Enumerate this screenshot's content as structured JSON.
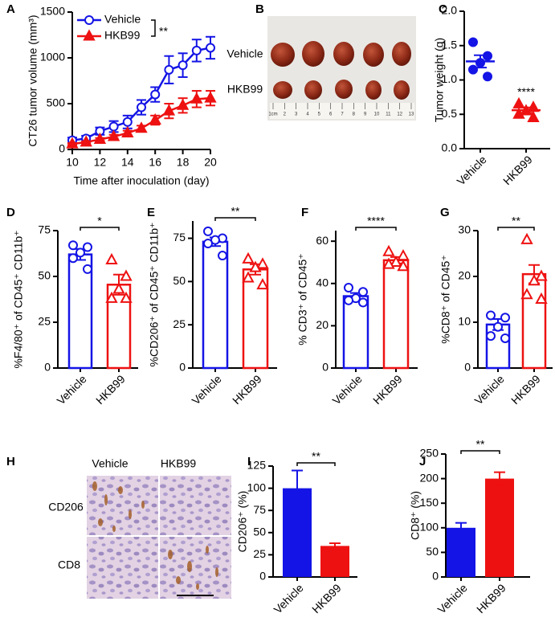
{
  "chart_data": [
    {
      "type": "line",
      "panel": "A",
      "ylabel": "CT26 tumor volume (mm³)",
      "xlabel": "Time after inoculation (day)",
      "x": [
        10,
        11,
        12,
        13,
        14,
        15,
        16,
        17,
        18,
        19,
        20
      ],
      "series": [
        {
          "name": "Vehicle",
          "color": "#1414e6",
          "marker": "circle",
          "filled": false,
          "values": [
            100,
            120,
            200,
            250,
            300,
            460,
            600,
            870,
            920,
            1080,
            1110
          ],
          "errors": [
            30,
            30,
            40,
            60,
            70,
            80,
            80,
            150,
            130,
            120,
            120
          ]
        },
        {
          "name": "HKB99",
          "color": "#ee1111",
          "marker": "triangle",
          "filled": true,
          "values": [
            60,
            80,
            110,
            140,
            180,
            230,
            320,
            420,
            480,
            550,
            560
          ],
          "errors": [
            10,
            10,
            15,
            20,
            25,
            30,
            50,
            80,
            80,
            90,
            80
          ]
        }
      ],
      "xlim": [
        10,
        20
      ],
      "xticks": [
        10,
        12,
        14,
        16,
        18,
        20
      ],
      "ylim": [
        0,
        1500
      ],
      "yticks": [
        0,
        500,
        1000,
        1500
      ],
      "significance": "**"
    },
    {
      "type": "dot",
      "panel": "C",
      "ylabel": "Tumor weight (g)",
      "categories": [
        "Vehicle",
        "HKB99"
      ],
      "colors": [
        "#1414e6",
        "#ee1111"
      ],
      "markers": [
        "circle",
        "triangle"
      ],
      "filled": true,
      "means": [
        1.27,
        0.56
      ],
      "sems": [
        0.09,
        0.04
      ],
      "points": [
        [
          1.55,
          1.35,
          1.25,
          1.15,
          1.05
        ],
        [
          0.65,
          0.6,
          0.55,
          0.5,
          0.45
        ]
      ],
      "ylim": [
        0,
        2
      ],
      "yticks": [
        {
          "value": 0,
          "label": "0.0"
        },
        {
          "value": 0.5,
          "label": "0.5"
        },
        {
          "value": 1,
          "label": "1.0"
        },
        {
          "value": 1.5,
          "label": "1.5"
        },
        {
          "value": 2,
          "label": "2.0"
        }
      ],
      "significance": "****"
    },
    {
      "type": "bar_dot",
      "panel": "D",
      "ylabel": "%F4/80⁺ of CD45⁺ CD11b⁺",
      "categories": [
        "Vehicle",
        "HKB99"
      ],
      "colors": [
        "#1414e6",
        "#ee1111"
      ],
      "markers": [
        "circle",
        "triangle"
      ],
      "filled": false,
      "means": [
        62,
        45.5
      ],
      "sems": [
        3,
        5.5
      ],
      "points": [
        [
          67,
          66,
          63,
          60,
          54
        ],
        [
          59,
          50,
          43,
          38,
          38
        ]
      ],
      "ylim": [
        0,
        75
      ],
      "yticks": [
        0,
        25,
        50,
        75
      ],
      "significance": "*"
    },
    {
      "type": "bar_dot",
      "panel": "E",
      "ylabel": "%CD206⁺ of CD45⁺ CD11b⁺",
      "categories": [
        "Vehicle",
        "HKB99"
      ],
      "colors": [
        "#1414e6",
        "#ee1111"
      ],
      "markers": [
        "circle",
        "triangle"
      ],
      "filled": false,
      "means": [
        73,
        57
      ],
      "sems": [
        2.5,
        3
      ],
      "points": [
        [
          79,
          75,
          74,
          72,
          65
        ],
        [
          63,
          60,
          58,
          52,
          48
        ]
      ],
      "ylim": [
        0,
        85
      ],
      "yticks": [
        0,
        25,
        50,
        75
      ],
      "significance": "**"
    },
    {
      "type": "bar_dot",
      "panel": "F",
      "ylabel": "% CD3⁺ of CD45⁺",
      "categories": [
        "Vehicle",
        "HKB99"
      ],
      "colors": [
        "#1414e6",
        "#ee1111"
      ],
      "markers": [
        "circle",
        "triangle"
      ],
      "filled": false,
      "means": [
        34,
        51
      ],
      "sems": [
        1.5,
        1.5
      ],
      "points": [
        [
          38,
          36,
          33,
          32,
          31
        ],
        [
          55,
          53,
          50,
          49,
          48
        ]
      ],
      "ylim": [
        0,
        65
      ],
      "yticks": [
        0,
        20,
        40,
        60
      ],
      "significance": "****"
    },
    {
      "type": "bar_dot",
      "panel": "G",
      "ylabel": "%CD8⁺ of CD45⁺",
      "categories": [
        "Vehicle",
        "HKB99"
      ],
      "colors": [
        "#1414e6",
        "#ee1111"
      ],
      "markers": [
        "circle",
        "triangle"
      ],
      "filled": false,
      "means": [
        9.5,
        20.5
      ],
      "sems": [
        1.2,
        2
      ],
      "points": [
        [
          11.5,
          11,
          9,
          7,
          6.5
        ],
        [
          28,
          20,
          19,
          16,
          15
        ]
      ],
      "ylim": [
        0,
        30
      ],
      "yticks": [
        0,
        10,
        20,
        30
      ],
      "significance": "**"
    },
    {
      "type": "bar",
      "panel": "I",
      "ylabel": "CD206⁺ (%)",
      "categories": [
        "Vehicle",
        "HKB99"
      ],
      "colors": [
        "#1414e6",
        "#ee1111"
      ],
      "filled": true,
      "means": [
        100,
        35
      ],
      "sems": [
        20,
        3
      ],
      "ylim": [
        0,
        125
      ],
      "yticks": [
        0,
        25,
        50,
        75,
        100,
        125
      ],
      "significance": "**"
    },
    {
      "type": "bar",
      "panel": "J",
      "ylabel": "CD8⁺ (%)",
      "categories": [
        "Vehicle",
        "HKB99"
      ],
      "colors": [
        "#1414e6",
        "#ee1111"
      ],
      "filled": true,
      "means": [
        100,
        200
      ],
      "sems": [
        10,
        13
      ],
      "ylim": [
        0,
        250
      ],
      "yticks": [
        0,
        50,
        100,
        150,
        200,
        250
      ],
      "significance": "**"
    }
  ],
  "figures": [
    {
      "panel": "B",
      "rows": [
        "Vehicle",
        "HKB99"
      ],
      "ruler_labels": [
        "1cm",
        "2",
        "3",
        "4",
        "5",
        "6",
        "7",
        "8",
        "9",
        "10",
        "11",
        "12",
        "13"
      ]
    },
    {
      "panel": "H",
      "columns": [
        "Vehicle",
        "HKB99"
      ],
      "rows": [
        "CD206",
        "CD8"
      ]
    }
  ]
}
